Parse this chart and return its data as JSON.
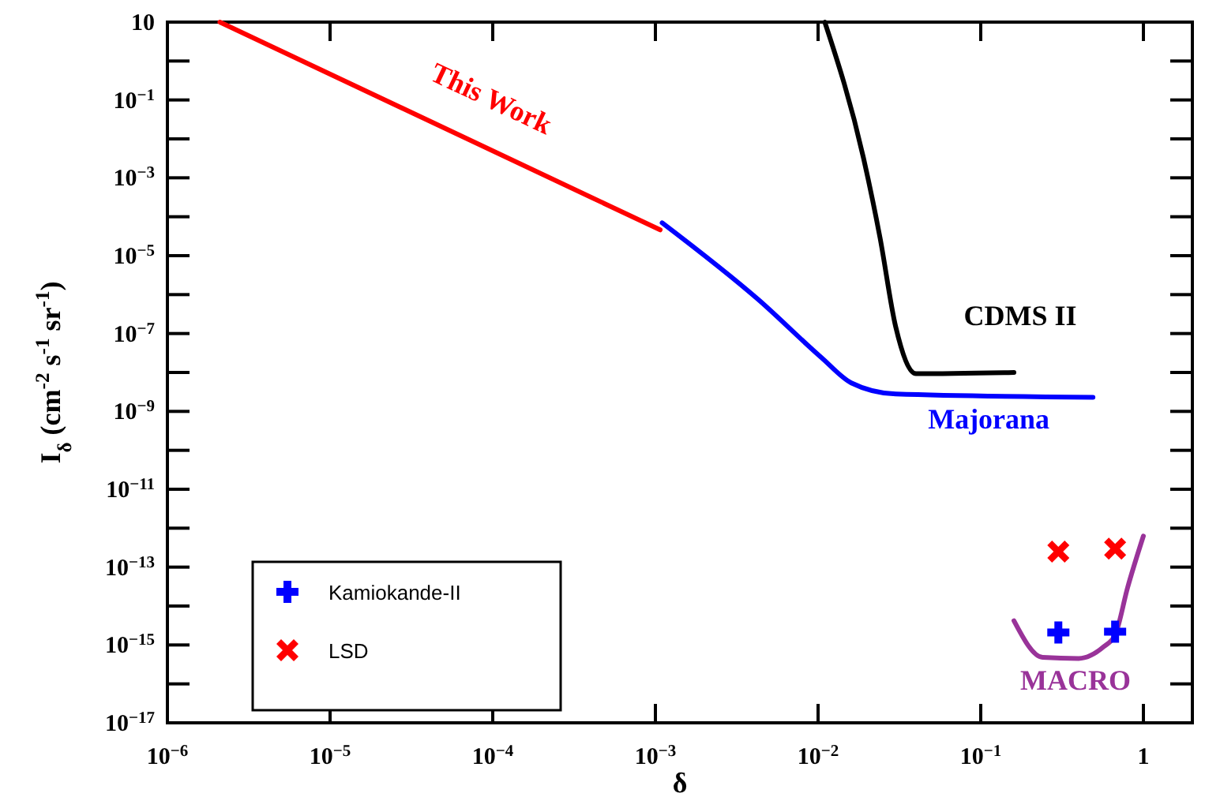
{
  "chart_data": {
    "type": "line",
    "xlabel": "δ",
    "ylabel": "I$_{δ}$ (cm$^{-2}$ s$^{-1}$ sr$^{-1}$)",
    "log": "xy",
    "xlim": [
      1e-06,
      2
    ],
    "ylim": [
      1e-17,
      10
    ],
    "xticks": [
      {
        "value": 1e-06,
        "label": "10$^{−6}$"
      },
      {
        "value": 1e-05,
        "label": "10$^{−5}$"
      },
      {
        "value": 0.0001,
        "label": "10$^{−4}$"
      },
      {
        "value": 0.001,
        "label": "10$^{−3}$"
      },
      {
        "value": 0.01,
        "label": "10$^{−2}$"
      },
      {
        "value": 0.1,
        "label": "10$^{−1}$"
      },
      1
    ],
    "yticks": [
      {
        "value": 1e-17,
        "label": "10$^{−17}$"
      },
      {
        "value": 1e-16,
        "label": null
      },
      {
        "value": 1e-15,
        "label": "10$^{−15}$"
      },
      {
        "value": 1e-14,
        "label": null
      },
      {
        "value": 1e-13,
        "label": "10$^{−13}$"
      },
      {
        "value": 1e-12,
        "label": null
      },
      {
        "value": 1e-11,
        "label": "10$^{−11}$"
      },
      {
        "value": 1e-10,
        "label": null
      },
      {
        "value": 1e-09,
        "label": "10$^{−9}$"
      },
      {
        "value": 1e-08,
        "label": null
      },
      {
        "value": 1e-07,
        "label": "10$^{−7}$"
      },
      {
        "value": 1e-06,
        "label": null
      },
      {
        "value": 1e-05,
        "label": "10$^{−5}$"
      },
      {
        "value": 0.0001,
        "label": null
      },
      {
        "value": 0.001,
        "label": "10$^{−3}$"
      },
      {
        "value": 0.01,
        "label": null
      },
      {
        "value": 0.1,
        "label": "10$^{−1}$"
      },
      {
        "value": 1,
        "label": null
      },
      10
    ],
    "grid": false,
    "legend": "bottom left",
    "line_style": "solid",
    "marker": "none",
    "series": [
      {
        "name": "This Work",
        "color": "#ff0000",
        "x": [
          2.1e-06,
          0.00107
        ],
        "values": [
          10,
          4.6e-05
        ]
      },
      {
        "name": "Majorana",
        "color": "#0000ff",
        "x": [
          0.0011,
          0.0043,
          0.0105,
          0.016,
          0.03,
          0.49
        ],
        "values": [
          7e-05,
          7.4e-07,
          2.4e-08,
          5.4e-09,
          2.8e-09,
          2.3e-09
        ]
      },
      {
        "name": "CDMS II",
        "color": "#000000",
        "x": [
          0.011,
          0.019,
          0.024,
          0.03,
          0.04,
          0.16
        ],
        "values": [
          10,
          0.0033,
          3e-05,
          1.5e-07,
          9.3e-09,
          1e-08
        ]
      },
      {
        "name": "MACRO",
        "color": "#993399",
        "x": [
          0.16,
          0.24,
          0.4,
          0.57,
          0.67,
          0.8,
          1.0
        ],
        "values": [
          4.2e-15,
          4.8e-16,
          4.5e-16,
          9e-16,
          1.8e-15,
          3e-14,
          6.3e-13
        ]
      },
      {
        "type": "scatter",
        "name": "Kamiokande-II",
        "color": "#0000ff",
        "marker": "cross",
        "x": [
          0.3,
          0.67
        ],
        "values": [
          2.1e-15,
          2.2e-15
        ]
      },
      {
        "type": "scatter",
        "name": "LSD",
        "color": "#ff0000",
        "marker": "x",
        "x": [
          0.3,
          0.67
        ],
        "values": [
          2.5e-13,
          3e-13
        ]
      }
    ]
  }
}
